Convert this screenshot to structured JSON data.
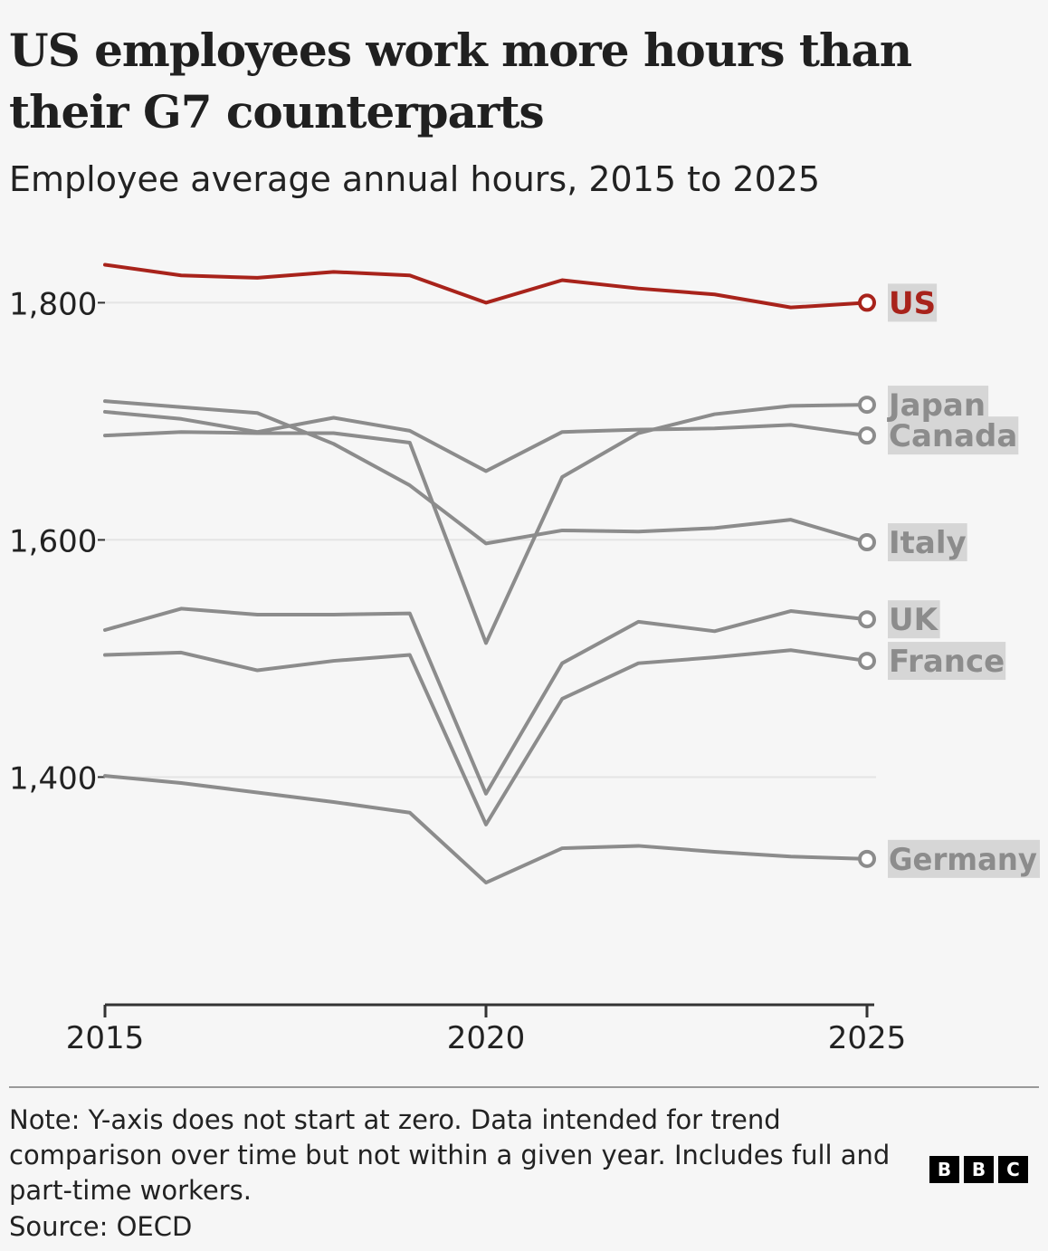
{
  "title": "US employees work more hours than their G7 counterparts",
  "subtitle": "Employee average annual hours, 2015 to 2025",
  "note": "Note: Y-axis does not start at zero. Data intended for trend comparison over time but not within a given year. Includes full and part-time workers.",
  "source": "Source: OECD",
  "logo": [
    "B",
    "B",
    "C"
  ],
  "colors": {
    "highlight": "#a8231b",
    "other": "#8c8c8c",
    "label_bg": "#d6d6d6",
    "grid": "#e4e4e4"
  },
  "chart_data": {
    "type": "line",
    "title": "US employees work more hours than their G7 counterparts",
    "subtitle": "Employee average annual hours, 2015 to 2025",
    "x": [
      2015,
      2016,
      2017,
      2018,
      2019,
      2020,
      2021,
      2022,
      2023,
      2024,
      2025
    ],
    "xticks": [
      2015,
      2020,
      2025
    ],
    "xtick_labels": [
      "2015",
      "2020",
      "2025"
    ],
    "yticks": [
      1400,
      1600,
      1800
    ],
    "ytick_labels": [
      "1,400",
      "1,600",
      "1,800"
    ],
    "ylim": [
      1208,
      1840
    ],
    "grid": true,
    "series": [
      {
        "name": "US",
        "highlight": true,
        "values": [
          1832,
          1823,
          1821,
          1826,
          1823,
          1800,
          1819,
          1812,
          1807,
          1796,
          1800
        ]
      },
      {
        "name": "Italy",
        "highlight": false,
        "values": [
          1717,
          1712,
          1707,
          1681,
          1646,
          1597,
          1608,
          1607,
          1610,
          1617,
          1598
        ]
      },
      {
        "name": "Canada",
        "highlight": false,
        "values": [
          1708,
          1702,
          1691,
          1703,
          1692,
          1658,
          1691,
          1693,
          1694,
          1697,
          1688
        ]
      },
      {
        "name": "Japan",
        "highlight": false,
        "values": [
          1688,
          1691,
          1690,
          1690,
          1682,
          1513,
          1653,
          1690,
          1706,
          1713,
          1714
        ]
      },
      {
        "name": "UK",
        "highlight": false,
        "values": [
          1524,
          1542,
          1537,
          1537,
          1538,
          1386,
          1496,
          1531,
          1523,
          1540,
          1533
        ]
      },
      {
        "name": "France",
        "highlight": false,
        "values": [
          1503,
          1505,
          1490,
          1498,
          1503,
          1360,
          1466,
          1496,
          1501,
          1507,
          1498
        ]
      },
      {
        "name": "Germany",
        "highlight": false,
        "values": [
          1401,
          1395,
          1387,
          1379,
          1370,
          1311,
          1340,
          1342,
          1337,
          1333,
          1331
        ]
      }
    ],
    "end_labels": [
      {
        "name": "US",
        "text": "US"
      },
      {
        "name": "Italy",
        "text": "Italy"
      },
      {
        "name": "Canada",
        "text": "Canada"
      },
      {
        "name": "Japan",
        "text": "Japan"
      },
      {
        "name": "UK",
        "text": "UK"
      },
      {
        "name": "France",
        "text": "France"
      },
      {
        "name": "Germany",
        "text": "Germany"
      }
    ]
  }
}
